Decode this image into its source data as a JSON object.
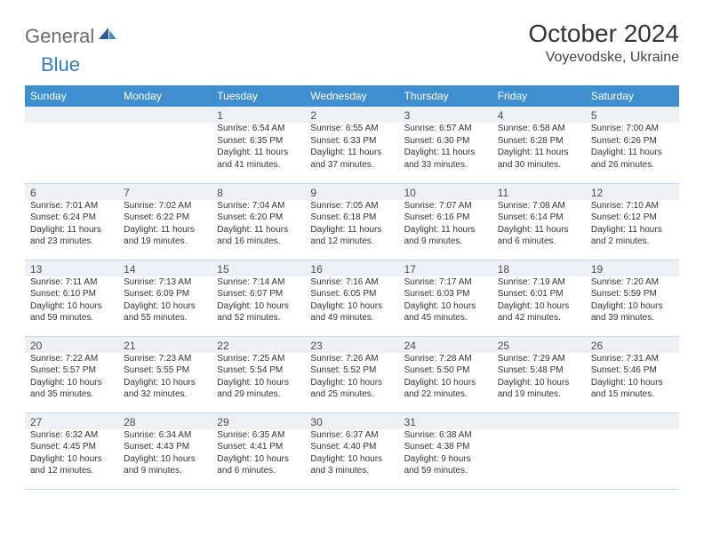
{
  "brand": {
    "g": "General",
    "b": "Blue"
  },
  "title": "October 2024",
  "location": "Voyevodske, Ukraine",
  "colors": {
    "header_bg": "#3f8fd0",
    "header_text": "#ffffff",
    "daynum_bg": "#eef1f4",
    "border": "#c9d8e6",
    "text": "#333333"
  },
  "day_labels": [
    "Sunday",
    "Monday",
    "Tuesday",
    "Wednesday",
    "Thursday",
    "Friday",
    "Saturday"
  ],
  "weeks": [
    [
      null,
      null,
      {
        "n": "1",
        "sr": "6:54 AM",
        "ss": "6:35 PM",
        "dl": "11 hours and 41 minutes."
      },
      {
        "n": "2",
        "sr": "6:55 AM",
        "ss": "6:33 PM",
        "dl": "11 hours and 37 minutes."
      },
      {
        "n": "3",
        "sr": "6:57 AM",
        "ss": "6:30 PM",
        "dl": "11 hours and 33 minutes."
      },
      {
        "n": "4",
        "sr": "6:58 AM",
        "ss": "6:28 PM",
        "dl": "11 hours and 30 minutes."
      },
      {
        "n": "5",
        "sr": "7:00 AM",
        "ss": "6:26 PM",
        "dl": "11 hours and 26 minutes."
      }
    ],
    [
      {
        "n": "6",
        "sr": "7:01 AM",
        "ss": "6:24 PM",
        "dl": "11 hours and 23 minutes."
      },
      {
        "n": "7",
        "sr": "7:02 AM",
        "ss": "6:22 PM",
        "dl": "11 hours and 19 minutes."
      },
      {
        "n": "8",
        "sr": "7:04 AM",
        "ss": "6:20 PM",
        "dl": "11 hours and 16 minutes."
      },
      {
        "n": "9",
        "sr": "7:05 AM",
        "ss": "6:18 PM",
        "dl": "11 hours and 12 minutes."
      },
      {
        "n": "10",
        "sr": "7:07 AM",
        "ss": "6:16 PM",
        "dl": "11 hours and 9 minutes."
      },
      {
        "n": "11",
        "sr": "7:08 AM",
        "ss": "6:14 PM",
        "dl": "11 hours and 6 minutes."
      },
      {
        "n": "12",
        "sr": "7:10 AM",
        "ss": "6:12 PM",
        "dl": "11 hours and 2 minutes."
      }
    ],
    [
      {
        "n": "13",
        "sr": "7:11 AM",
        "ss": "6:10 PM",
        "dl": "10 hours and 59 minutes."
      },
      {
        "n": "14",
        "sr": "7:13 AM",
        "ss": "6:09 PM",
        "dl": "10 hours and 55 minutes."
      },
      {
        "n": "15",
        "sr": "7:14 AM",
        "ss": "6:07 PM",
        "dl": "10 hours and 52 minutes."
      },
      {
        "n": "16",
        "sr": "7:16 AM",
        "ss": "6:05 PM",
        "dl": "10 hours and 49 minutes."
      },
      {
        "n": "17",
        "sr": "7:17 AM",
        "ss": "6:03 PM",
        "dl": "10 hours and 45 minutes."
      },
      {
        "n": "18",
        "sr": "7:19 AM",
        "ss": "6:01 PM",
        "dl": "10 hours and 42 minutes."
      },
      {
        "n": "19",
        "sr": "7:20 AM",
        "ss": "5:59 PM",
        "dl": "10 hours and 39 minutes."
      }
    ],
    [
      {
        "n": "20",
        "sr": "7:22 AM",
        "ss": "5:57 PM",
        "dl": "10 hours and 35 minutes."
      },
      {
        "n": "21",
        "sr": "7:23 AM",
        "ss": "5:55 PM",
        "dl": "10 hours and 32 minutes."
      },
      {
        "n": "22",
        "sr": "7:25 AM",
        "ss": "5:54 PM",
        "dl": "10 hours and 29 minutes."
      },
      {
        "n": "23",
        "sr": "7:26 AM",
        "ss": "5:52 PM",
        "dl": "10 hours and 25 minutes."
      },
      {
        "n": "24",
        "sr": "7:28 AM",
        "ss": "5:50 PM",
        "dl": "10 hours and 22 minutes."
      },
      {
        "n": "25",
        "sr": "7:29 AM",
        "ss": "5:48 PM",
        "dl": "10 hours and 19 minutes."
      },
      {
        "n": "26",
        "sr": "7:31 AM",
        "ss": "5:46 PM",
        "dl": "10 hours and 15 minutes."
      }
    ],
    [
      {
        "n": "27",
        "sr": "6:32 AM",
        "ss": "4:45 PM",
        "dl": "10 hours and 12 minutes."
      },
      {
        "n": "28",
        "sr": "6:34 AM",
        "ss": "4:43 PM",
        "dl": "10 hours and 9 minutes."
      },
      {
        "n": "29",
        "sr": "6:35 AM",
        "ss": "4:41 PM",
        "dl": "10 hours and 6 minutes."
      },
      {
        "n": "30",
        "sr": "6:37 AM",
        "ss": "4:40 PM",
        "dl": "10 hours and 3 minutes."
      },
      {
        "n": "31",
        "sr": "6:38 AM",
        "ss": "4:38 PM",
        "dl": "9 hours and 59 minutes."
      },
      null,
      null
    ]
  ],
  "labels": {
    "sunrise": "Sunrise: ",
    "sunset": "Sunset: ",
    "daylight": "Daylight: "
  }
}
